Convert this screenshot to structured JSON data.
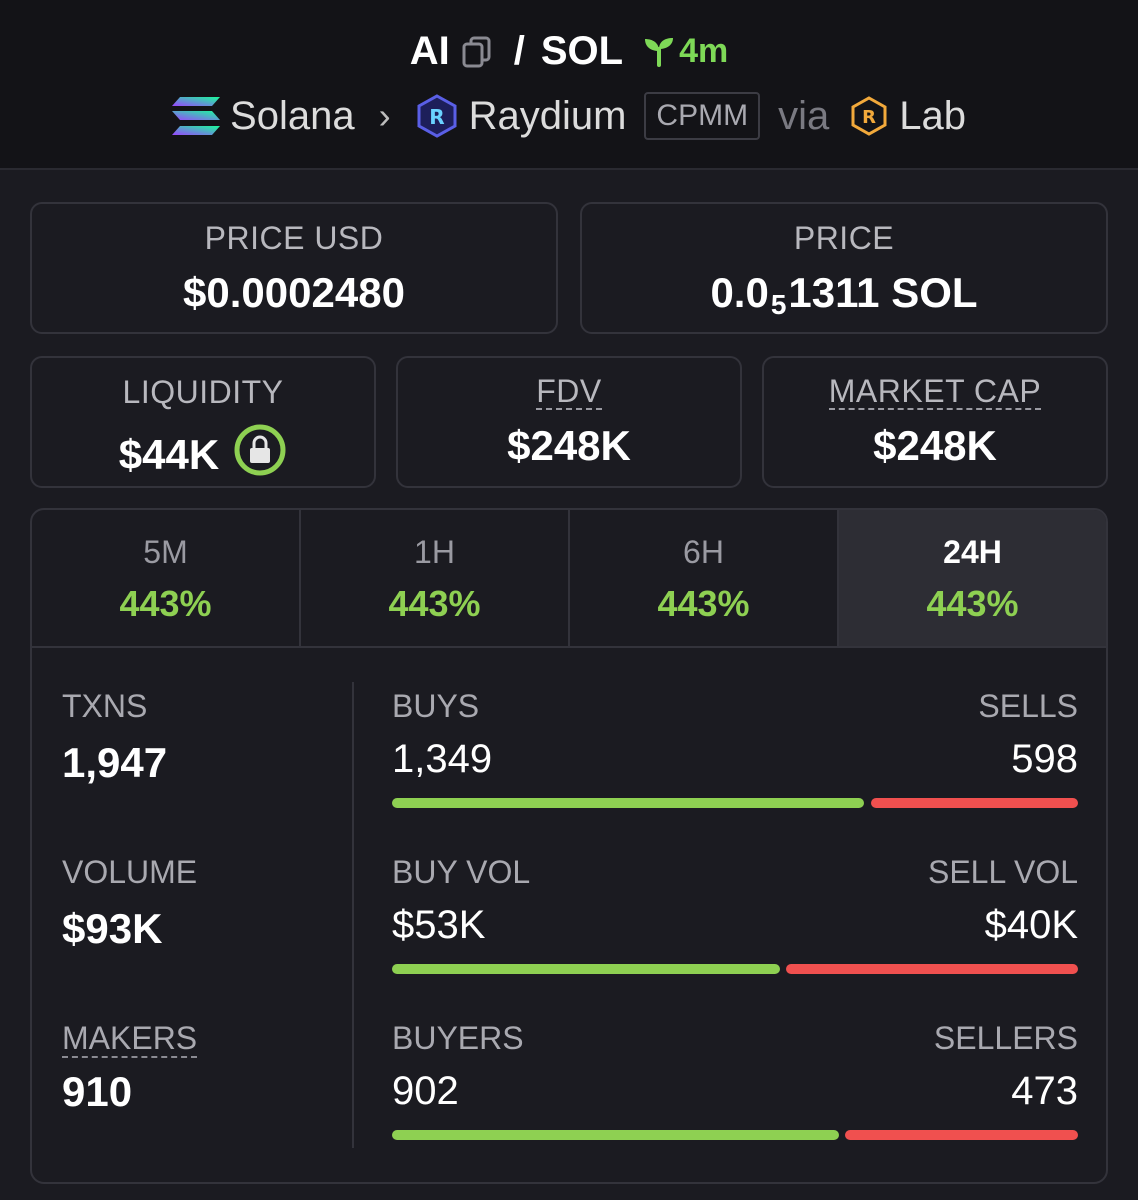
{
  "header": {
    "base_token": "AI",
    "quote_token": "SOL",
    "separator": "/",
    "age": "4m",
    "chain": "Solana",
    "dex": "Raydium",
    "pool_type": "CPMM",
    "via_label": "via",
    "launchpad": "Lab",
    "icons": [
      "copy-icon",
      "sprout-icon",
      "solana-logo",
      "raydium-logo",
      "lab-logo",
      "chevron-right-icon",
      "lock-icon"
    ]
  },
  "price_usd": {
    "label": "PRICE USD",
    "value": "$0.0002480"
  },
  "price_native": {
    "label": "PRICE",
    "value_prefix": "0.0",
    "value_subscript": "5",
    "value_suffix": "1311 SOL"
  },
  "liquidity": {
    "label": "LIQUIDITY",
    "value": "$44K"
  },
  "fdv": {
    "label": "FDV",
    "value": "$248K"
  },
  "market_cap": {
    "label": "MARKET CAP",
    "value": "$248K"
  },
  "tabs": [
    {
      "label": "5M",
      "change": "443%"
    },
    {
      "label": "1H",
      "change": "443%"
    },
    {
      "label": "6H",
      "change": "443%"
    },
    {
      "label": "24H",
      "change": "443%",
      "active": true
    }
  ],
  "txns": {
    "label": "TXNS",
    "value": "1,947"
  },
  "volume": {
    "label": "VOLUME",
    "value": "$93K"
  },
  "makers": {
    "label": "MAKERS",
    "value": "910"
  },
  "buys_sells": {
    "buy_label": "BUYS",
    "sell_label": "SELLS",
    "buy_value": "1,349",
    "sell_value": "598",
    "buy_share": 0.693
  },
  "vol_split": {
    "buy_label": "BUY VOL",
    "sell_label": "SELL VOL",
    "buy_value": "$53K",
    "sell_value": "$40K",
    "buy_share": 0.57
  },
  "buyers_sellers": {
    "buy_label": "BUYERS",
    "sell_label": "SELLERS",
    "buy_value": "902",
    "sell_value": "473",
    "buy_share": 0.656
  },
  "colors": {
    "positive": "#8ed052",
    "negative": "#f0504f",
    "lock_ring": "#8ed052"
  }
}
